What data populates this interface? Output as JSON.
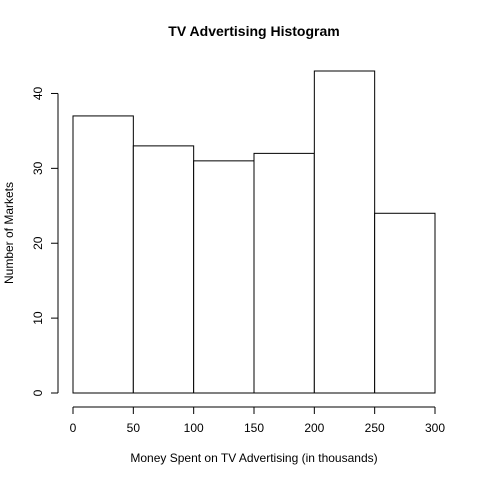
{
  "chart_data": {
    "type": "bar",
    "title": "TV Advertising Histogram",
    "xlabel": "Money Spent on TV Advertising (in thousands)",
    "ylabel": "Number of Markets",
    "bins": [
      {
        "start": 0,
        "end": 50,
        "count": 37
      },
      {
        "start": 50,
        "end": 100,
        "count": 33
      },
      {
        "start": 100,
        "end": 150,
        "count": 31
      },
      {
        "start": 150,
        "end": 200,
        "count": 32
      },
      {
        "start": 200,
        "end": 250,
        "count": 43
      },
      {
        "start": 250,
        "end": 300,
        "count": 24
      }
    ],
    "xlim": [
      0,
      300
    ],
    "ylim": [
      0,
      43
    ],
    "xticks": [
      "0",
      "50",
      "100",
      "150",
      "200",
      "250",
      "300"
    ],
    "yticks": [
      "0",
      "10",
      "20",
      "30",
      "40"
    ],
    "grid": false
  }
}
